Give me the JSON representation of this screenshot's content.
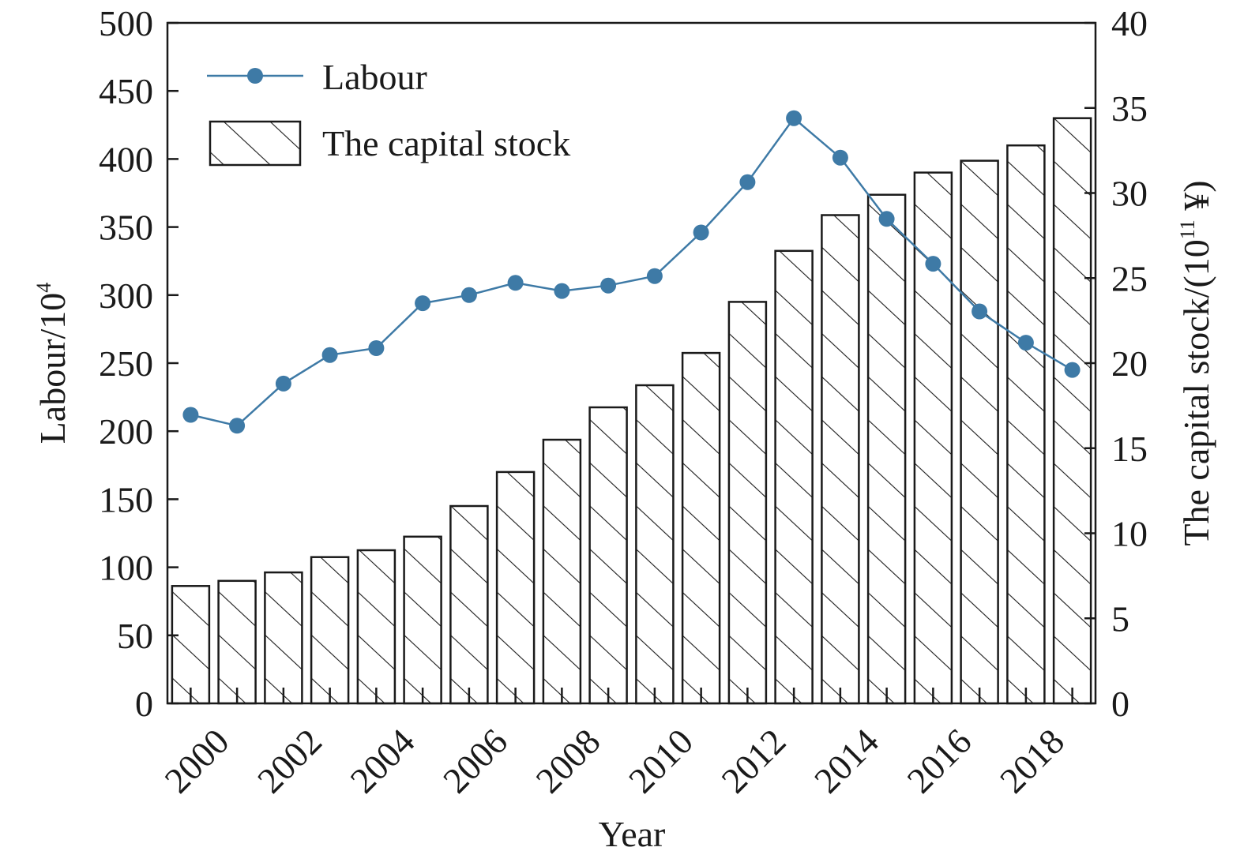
{
  "chart_data": {
    "type": "bar",
    "xlabel": "Year",
    "ylabel_left": "Labour/10",
    "ylabel_left_sup": "4",
    "ylabel_right_prefix": "The capital stock/(10",
    "ylabel_right_sup": "11",
    "ylabel_right_suffix": " ¥)",
    "x": [
      2000,
      2001,
      2002,
      2003,
      2004,
      2005,
      2006,
      2007,
      2008,
      2009,
      2010,
      2011,
      2012,
      2013,
      2014,
      2015,
      2016,
      2017,
      2018,
      2019
    ],
    "x_tick_labels": [
      "2000",
      "2002",
      "2004",
      "2006",
      "2008",
      "2010",
      "2012",
      "2014",
      "2016",
      "2018"
    ],
    "ylim_left": [
      0,
      500
    ],
    "yticks_left": [
      0,
      50,
      100,
      150,
      200,
      250,
      300,
      350,
      400,
      450,
      500
    ],
    "ylim_right": [
      0,
      40
    ],
    "yticks_right": [
      0,
      5,
      10,
      15,
      20,
      25,
      30,
      35,
      40
    ],
    "grid": false,
    "legend_position": "top-left",
    "series": [
      {
        "name": "Labour",
        "type": "line",
        "axis": "left",
        "color": "#3e7aa6",
        "values": [
          212,
          204,
          235,
          256,
          261,
          294,
          300,
          309,
          303,
          307,
          314,
          346,
          383,
          430,
          401,
          356,
          323,
          288,
          265,
          245
        ]
      },
      {
        "name": "The capital stock",
        "type": "bar",
        "axis": "right",
        "pattern": "diagonal-hatch",
        "color": "#1a1a1a",
        "values": [
          6.9,
          7.2,
          7.7,
          8.6,
          9.0,
          9.8,
          11.6,
          13.6,
          15.5,
          17.4,
          18.7,
          20.6,
          23.6,
          26.6,
          28.7,
          29.9,
          31.2,
          31.9,
          32.8,
          34.4
        ]
      }
    ]
  }
}
